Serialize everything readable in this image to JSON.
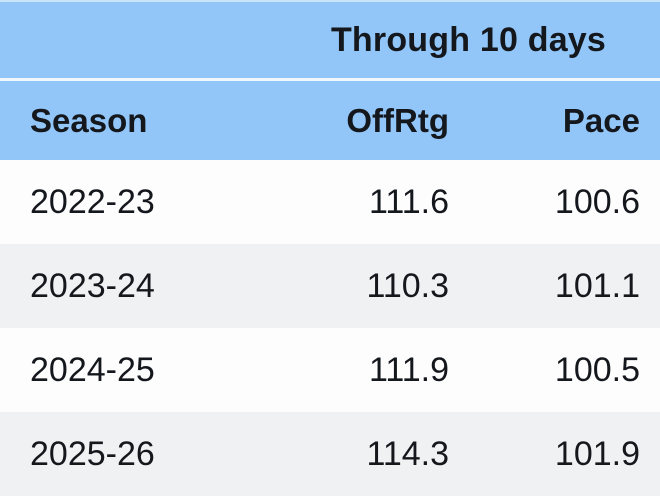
{
  "header": {
    "merged_label": "Through 10 days"
  },
  "columns": {
    "season": "Season",
    "offrtg": "OffRtg",
    "pace": "Pace"
  },
  "rows": [
    {
      "season": "2022-23",
      "offrtg": "111.6",
      "pace": "100.6"
    },
    {
      "season": "2023-24",
      "offrtg": "110.3",
      "pace": "101.1"
    },
    {
      "season": "2024-25",
      "offrtg": "111.9",
      "pace": "100.5"
    },
    {
      "season": "2025-26",
      "offrtg": "114.3",
      "pace": "101.9"
    }
  ],
  "colors": {
    "header_blue": "#92c6f8",
    "row_stripe_gray": "#f0f1f3",
    "row_white": "#fdfdfe",
    "text": "#14171c",
    "header_divider": "#f2f7fd"
  },
  "chart_data": {
    "type": "table",
    "title": "Through 10 days",
    "columns": [
      "Season",
      "OffRtg",
      "Pace"
    ],
    "rows": [
      [
        "2022-23",
        111.6,
        100.6
      ],
      [
        "2023-24",
        110.3,
        101.1
      ],
      [
        "2024-25",
        111.9,
        100.5
      ],
      [
        "2025-26",
        114.3,
        101.9
      ]
    ],
    "layout_hints": {
      "merged_header_spans": [
        "OffRtg",
        "Pace"
      ],
      "numeric_alignment": "right",
      "zebra_striping": true,
      "grid": false
    }
  }
}
